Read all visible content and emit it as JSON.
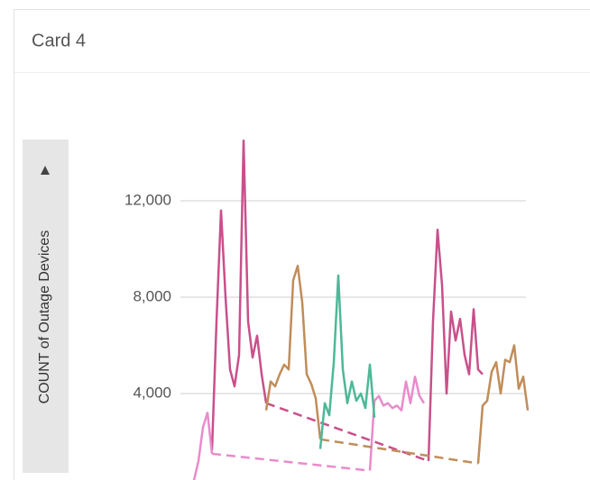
{
  "card": {
    "title": "Card 4"
  },
  "chart_data": {
    "type": "line",
    "y_label": "COUNT of Outage Devices",
    "categories": [
      null,
      null,
      null,
      null,
      null,
      null,
      null,
      null,
      null,
      null,
      null,
      null,
      null,
      null,
      null,
      null,
      null,
      null,
      null,
      null,
      null,
      null,
      null,
      null,
      null,
      null,
      null,
      null,
      null,
      null,
      null,
      null,
      null,
      null,
      null,
      null,
      null,
      null,
      null,
      null,
      null,
      null,
      null,
      null,
      null,
      null,
      null,
      null,
      null,
      null,
      null,
      null,
      null,
      null,
      null,
      null,
      null,
      null,
      null,
      null,
      null,
      null,
      null,
      null,
      null,
      null,
      null,
      null,
      null,
      null,
      null,
      null,
      null,
      null,
      null
    ],
    "series": [
      {
        "color": "#c9508a",
        "gap_style": "dashed",
        "values": [
          null,
          null,
          null,
          null,
          1650,
          7000,
          11600,
          8000,
          5000,
          4300,
          5600,
          14500,
          7000,
          5500,
          6400,
          4800,
          3600,
          null,
          null,
          null,
          null,
          null,
          null,
          null,
          null,
          null,
          null,
          null,
          null,
          null,
          null,
          null,
          null,
          null,
          null,
          null,
          null,
          null,
          null,
          null,
          null,
          null,
          null,
          null,
          null,
          null,
          null,
          null,
          null,
          null,
          null,
          null,
          1200,
          7000,
          10800,
          8500,
          4000,
          7400,
          6200,
          7100,
          5600,
          4800,
          7500,
          5000,
          4800,
          null,
          null,
          null,
          null,
          null,
          null,
          null,
          null,
          null,
          null
        ]
      },
      {
        "color": "#e98bcb",
        "gap_style": "dashed",
        "values": [
          400,
          1200,
          2600,
          3200,
          1500,
          null,
          null,
          null,
          null,
          null,
          null,
          null,
          null,
          null,
          null,
          null,
          null,
          null,
          null,
          null,
          null,
          null,
          null,
          null,
          null,
          null,
          null,
          null,
          null,
          null,
          null,
          null,
          null,
          null,
          null,
          null,
          null,
          null,
          null,
          800,
          3700,
          3900,
          3500,
          3600,
          3400,
          3500,
          3300,
          4500,
          3600,
          4700,
          3900,
          3600,
          null,
          null,
          null,
          null,
          null,
          null,
          null,
          null,
          null,
          null,
          null,
          null,
          null,
          null,
          null,
          null,
          null,
          null,
          null,
          null,
          null,
          null,
          null
        ]
      },
      {
        "color": "#c08d5a",
        "gap_style": "dashed",
        "values": [
          null,
          null,
          null,
          null,
          null,
          null,
          null,
          null,
          null,
          null,
          null,
          null,
          null,
          null,
          null,
          null,
          3300,
          4500,
          4300,
          4800,
          5200,
          5000,
          8700,
          9300,
          7800,
          4800,
          4400,
          3800,
          2100,
          null,
          null,
          null,
          null,
          null,
          null,
          null,
          null,
          null,
          null,
          null,
          null,
          null,
          null,
          null,
          null,
          null,
          null,
          null,
          null,
          null,
          null,
          null,
          null,
          null,
          null,
          null,
          null,
          null,
          null,
          null,
          null,
          null,
          null,
          1100,
          3500,
          3700,
          4900,
          5300,
          4000,
          5400,
          5300,
          6000,
          4200,
          4700,
          3300
        ]
      },
      {
        "color": "#4db897",
        "gap_style": "dashed",
        "values": [
          null,
          null,
          null,
          null,
          null,
          null,
          null,
          null,
          null,
          null,
          null,
          null,
          null,
          null,
          null,
          null,
          null,
          null,
          null,
          null,
          null,
          null,
          null,
          null,
          null,
          null,
          null,
          null,
          1700,
          3600,
          3100,
          5300,
          8900,
          5000,
          3600,
          4500,
          3700,
          4000,
          3400,
          5200,
          3000,
          null,
          null,
          null,
          null,
          null,
          null,
          null,
          null,
          null,
          null,
          null,
          null,
          null,
          null,
          null,
          null,
          null,
          null,
          null,
          null,
          null,
          null,
          null,
          null,
          null,
          null,
          null,
          null,
          null,
          null,
          null,
          null,
          null,
          null
        ]
      }
    ],
    "ylim": [
      0,
      16000
    ],
    "yticks": [
      {
        "value": 4000,
        "label": "4,000"
      },
      {
        "value": 8000,
        "label": "8,000"
      },
      {
        "value": 12000,
        "label": "12,000"
      }
    ],
    "grid": true
  }
}
